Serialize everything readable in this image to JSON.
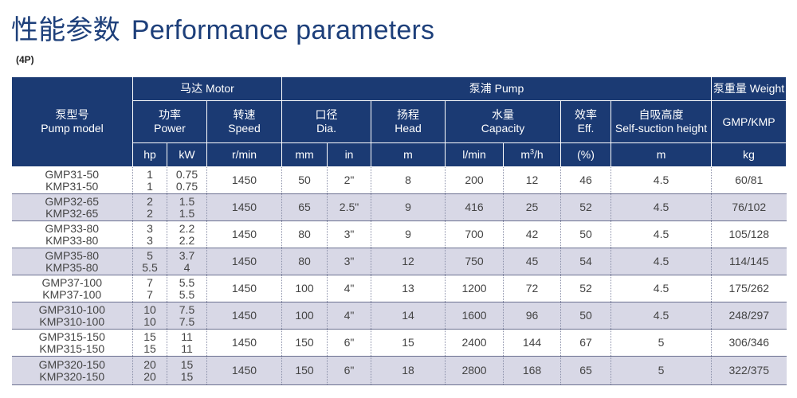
{
  "header": {
    "title_cn": "性能参数",
    "title_en": "Performance parameters",
    "subtitle": "(4P)"
  },
  "table": {
    "groups": {
      "motor": "马达 Motor",
      "pump": "泵浦 Pump",
      "weight": "泵重量 Weight"
    },
    "columns": {
      "model_cn": "泵型号",
      "model_en": "Pump model",
      "power_cn": "功率",
      "power_en": "Power",
      "speed_cn": "转速",
      "speed_en": "Speed",
      "dia_cn": "口径",
      "dia_en": "Dia.",
      "head_cn": "扬程",
      "head_en": "Head",
      "capacity_cn": "水量",
      "capacity_en": "Capacity",
      "eff_cn": "效率",
      "eff_en": "Eff.",
      "suction_cn": "自吸高度",
      "suction_en": "Self-suction height",
      "weight_label": "GMP/KMP"
    },
    "units": {
      "hp": "hp",
      "kw": "kW",
      "speed": "r/min",
      "mm": "mm",
      "in": "in",
      "head": "m",
      "lmin": "l/min",
      "m3h_base": "m",
      "m3h_sup": "3",
      "m3h_tail": "/h",
      "eff": "(%)",
      "suction": "m",
      "weight": "kg"
    },
    "rows": [
      {
        "m1": "GMP31-50",
        "m2": "KMP31-50",
        "hp1": "1",
        "hp2": "1",
        "kw1": "0.75",
        "kw2": "0.75",
        "speed": "1450",
        "mm": "50",
        "in": "2\"",
        "head": "8",
        "lmin": "200",
        "m3h": "12",
        "eff": "46",
        "suction": "4.5",
        "weight": "60/81"
      },
      {
        "m1": "GMP32-65",
        "m2": "KMP32-65",
        "hp1": "2",
        "hp2": "2",
        "kw1": "1.5",
        "kw2": "1.5",
        "speed": "1450",
        "mm": "65",
        "in": "2.5\"",
        "head": "9",
        "lmin": "416",
        "m3h": "25",
        "eff": "52",
        "suction": "4.5",
        "weight": "76/102"
      },
      {
        "m1": "GMP33-80",
        "m2": "KMP33-80",
        "hp1": "3",
        "hp2": "3",
        "kw1": "2.2",
        "kw2": "2.2",
        "speed": "1450",
        "mm": "80",
        "in": "3\"",
        "head": "9",
        "lmin": "700",
        "m3h": "42",
        "eff": "50",
        "suction": "4.5",
        "weight": "105/128"
      },
      {
        "m1": "GMP35-80",
        "m2": "KMP35-80",
        "hp1": "5",
        "hp2": "5.5",
        "kw1": "3.7",
        "kw2": "4",
        "speed": "1450",
        "mm": "80",
        "in": "3\"",
        "head": "12",
        "lmin": "750",
        "m3h": "45",
        "eff": "54",
        "suction": "4.5",
        "weight": "114/145"
      },
      {
        "m1": "GMP37-100",
        "m2": "KMP37-100",
        "hp1": "7",
        "hp2": "7",
        "kw1": "5.5",
        "kw2": "5.5",
        "speed": "1450",
        "mm": "100",
        "in": "4\"",
        "head": "13",
        "lmin": "1200",
        "m3h": "72",
        "eff": "52",
        "suction": "4.5",
        "weight": "175/262"
      },
      {
        "m1": "GMP310-100",
        "m2": "KMP310-100",
        "hp1": "10",
        "hp2": "10",
        "kw1": "7.5",
        "kw2": "7.5",
        "speed": "1450",
        "mm": "100",
        "in": "4\"",
        "head": "14",
        "lmin": "1600",
        "m3h": "96",
        "eff": "50",
        "suction": "4.5",
        "weight": "248/297"
      },
      {
        "m1": "GMP315-150",
        "m2": "KMP315-150",
        "hp1": "15",
        "hp2": "15",
        "kw1": "11",
        "kw2": "11",
        "speed": "1450",
        "mm": "150",
        "in": "6\"",
        "head": "15",
        "lmin": "2400",
        "m3h": "144",
        "eff": "67",
        "suction": "5",
        "weight": "306/346"
      },
      {
        "m1": "GMP320-150",
        "m2": "KMP320-150",
        "hp1": "20",
        "hp2": "20",
        "kw1": "15",
        "kw2": "15",
        "speed": "1450",
        "mm": "150",
        "in": "6\"",
        "head": "18",
        "lmin": "2800",
        "m3h": "168",
        "eff": "65",
        "suction": "5",
        "weight": "322/375"
      }
    ]
  }
}
